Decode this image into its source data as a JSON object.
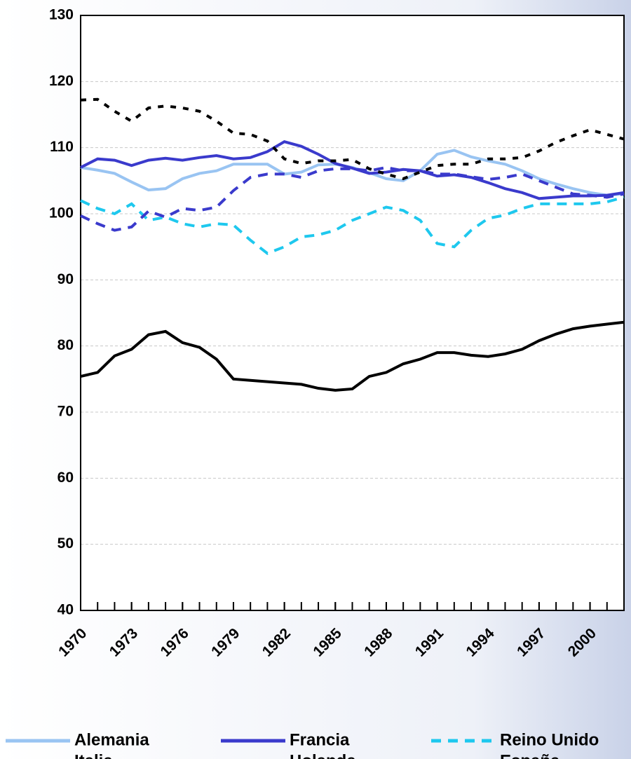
{
  "chart_data": {
    "type": "line",
    "x": [
      1970,
      1971,
      1972,
      1973,
      1974,
      1975,
      1976,
      1977,
      1978,
      1979,
      1980,
      1981,
      1982,
      1983,
      1984,
      1985,
      1986,
      1987,
      1988,
      1989,
      1990,
      1991,
      1992,
      1993,
      1994,
      1995,
      1996,
      1997,
      1998,
      1999,
      2000,
      2001,
      2002
    ],
    "series": [
      {
        "name": "Alemania",
        "color": "#99c4f2",
        "style": "solid",
        "values": [
          107.0,
          106.6,
          106.1,
          104.8,
          103.6,
          103.8,
          105.3,
          106.1,
          106.5,
          107.5,
          107.5,
          107.5,
          106.0,
          106.3,
          107.4,
          107.5,
          107.0,
          106.2,
          105.3,
          105.0,
          106.5,
          109.0,
          109.6,
          108.6,
          108.0,
          107.5,
          106.5,
          105.3,
          104.5,
          103.8,
          103.2,
          102.8,
          103.0
        ]
      },
      {
        "name": "Francia",
        "color": "#3a3acc",
        "style": "solid",
        "values": [
          107.0,
          108.3,
          108.1,
          107.3,
          108.1,
          108.4,
          108.1,
          108.5,
          108.8,
          108.3,
          108.5,
          109.4,
          110.9,
          110.2,
          109.0,
          107.6,
          106.9,
          106.1,
          106.3,
          106.7,
          106.5,
          105.7,
          105.9,
          105.5,
          104.7,
          103.8,
          103.2,
          102.3,
          102.5,
          102.7,
          102.7,
          102.8,
          103.2
        ]
      },
      {
        "name": "Reino Unido",
        "color": "#1ec8ee",
        "style": "dashed",
        "values": [
          102.0,
          100.8,
          100.0,
          101.5,
          99.0,
          99.5,
          98.5,
          98.0,
          98.5,
          98.3,
          96.0,
          94.0,
          95.0,
          96.5,
          96.8,
          97.5,
          99.0,
          100.0,
          101.0,
          100.5,
          99.0,
          95.5,
          95.0,
          97.5,
          99.3,
          99.8,
          100.8,
          101.5,
          101.5,
          101.5,
          101.5,
          101.8,
          102.5
        ]
      },
      {
        "name": "Italia",
        "color": "#3a3acc",
        "style": "dashed",
        "values": [
          99.7,
          98.5,
          97.5,
          98.0,
          100.4,
          99.5,
          100.8,
          100.5,
          101.0,
          103.5,
          105.5,
          106.0,
          106.0,
          105.5,
          106.5,
          106.8,
          106.8,
          106.5,
          107.0,
          106.5,
          106.5,
          106.0,
          106.0,
          105.6,
          105.2,
          105.5,
          106.0,
          105.0,
          104.0,
          103.0,
          102.8,
          102.5,
          103.0
        ]
      },
      {
        "name": "Holanda",
        "color": "#000000",
        "style": "dotted",
        "values": [
          117.2,
          117.3,
          115.5,
          114.0,
          116.0,
          116.3,
          116.0,
          115.5,
          114.0,
          112.2,
          112.0,
          111.0,
          108.3,
          107.6,
          108.0,
          108.0,
          108.2,
          106.8,
          106.0,
          105.3,
          106.3,
          107.3,
          107.5,
          107.5,
          108.3,
          108.3,
          108.5,
          109.5,
          110.8,
          111.8,
          112.7,
          112.0,
          111.3
        ]
      },
      {
        "name": "España",
        "color": "#000000",
        "style": "solid",
        "values": [
          75.4,
          76.0,
          78.5,
          79.5,
          81.7,
          82.2,
          80.5,
          79.8,
          78.0,
          75.0,
          74.8,
          74.6,
          74.4,
          74.2,
          73.6,
          73.3,
          73.5,
          75.4,
          76.0,
          77.3,
          78.0,
          79.0,
          79.0,
          78.6,
          78.4,
          78.8,
          79.5,
          80.8,
          81.8,
          82.6,
          83.0,
          83.3,
          83.6
        ]
      }
    ],
    "xlim": [
      1970,
      2002
    ],
    "xticks": [
      1970,
      1973,
      1976,
      1979,
      1982,
      1985,
      1988,
      1991,
      1994,
      1997,
      2000
    ],
    "ylim": [
      40,
      130
    ],
    "yticks": [
      40,
      50,
      60,
      70,
      80,
      90,
      100,
      110,
      120,
      130
    ],
    "grid": true
  }
}
